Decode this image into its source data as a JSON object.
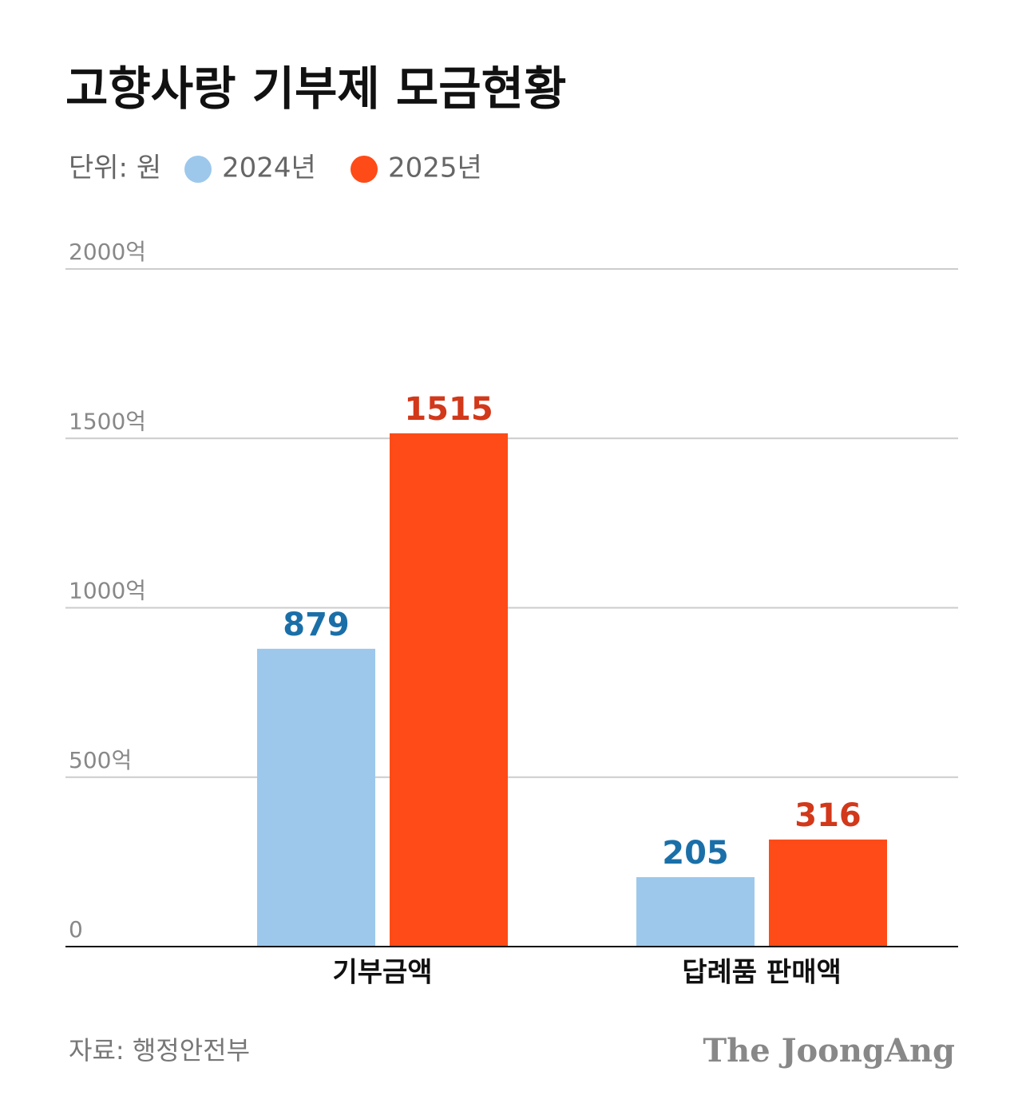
{
  "chart_data": {
    "type": "bar",
    "title": "고향사랑 기부제 모금현황",
    "subtitle": "단위: 원",
    "categories": [
      "기부금액",
      "답례품 판매액"
    ],
    "series": [
      {
        "name": "2024년",
        "color": "#9dc8ec",
        "label_color": "#1a6fa8",
        "values": [
          879,
          205
        ]
      },
      {
        "name": "2025년",
        "color": "#ff4b17",
        "label_color": "#d2381a",
        "values": [
          1515,
          316
        ]
      }
    ],
    "ylim": [
      0,
      2000
    ],
    "yticks": [
      0,
      {
        "value": 500,
        "label": "500억"
      },
      {
        "value": 1000,
        "label": "1000억"
      },
      {
        "value": 1500,
        "label": "1500억"
      },
      {
        "value": 2000,
        "label": "2000억"
      }
    ],
    "grid": true,
    "source": "자료: 행정안전부",
    "brand": "The JoongAng"
  }
}
